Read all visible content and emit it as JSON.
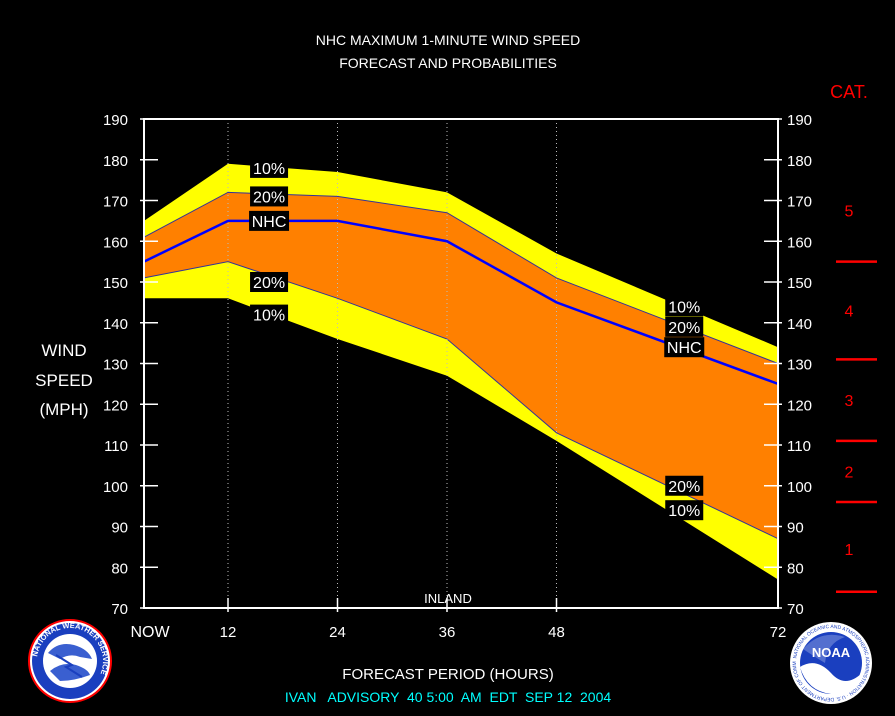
{
  "chart_data": {
    "type": "area",
    "title": "NHC MAXIMUM 1-MINUTE WIND SPEED",
    "subtitle": "FORECAST AND PROBABILITIES",
    "xlabel": "FORECAST PERIOD (HOURS)",
    "ylabel": [
      "WIND",
      "SPEED",
      "(MPH)"
    ],
    "footer": "IVAN   ADVISORY  40 5:00  AM  EDT  SEP 12  2004",
    "x_ticks": [
      "NOW",
      "12",
      "24",
      "36",
      "48",
      "72"
    ],
    "x_tick_values": [
      0,
      12,
      24,
      36,
      48,
      72
    ],
    "xlim": [
      0,
      72
    ],
    "ylim": [
      70,
      190
    ],
    "y_ticks": [
      70,
      80,
      90,
      100,
      110,
      120,
      130,
      140,
      150,
      160,
      170,
      180,
      190
    ],
    "grid_x_dotted": [
      12,
      24,
      36,
      48
    ],
    "annotation_inland": "INLAND",
    "x": [
      0,
      12,
      24,
      36,
      48,
      72
    ],
    "series": [
      {
        "name": "10%",
        "role": "upper_10",
        "values": [
          165,
          179,
          177,
          172,
          157,
          134
        ],
        "color": "#ffff00"
      },
      {
        "name": "20%",
        "role": "upper_20",
        "values": [
          161,
          172,
          171,
          167,
          151,
          130
        ],
        "color": "#ff8000"
      },
      {
        "name": "NHC",
        "role": "forecast",
        "values": [
          155,
          165,
          165,
          160,
          145,
          125
        ],
        "color": "#0000ff"
      },
      {
        "name": "20%",
        "role": "lower_20",
        "values": [
          151,
          155,
          146,
          136,
          113,
          87
        ],
        "color": "#ff8000"
      },
      {
        "name": "10%",
        "role": "lower_10",
        "values": [
          146,
          146,
          136,
          127,
          111,
          77
        ],
        "color": "#ffff00"
      }
    ],
    "band_labels": [
      {
        "text": "10%",
        "x": 16.5,
        "y": 178
      },
      {
        "text": "20%",
        "x": 16.5,
        "y": 171
      },
      {
        "text": "NHC",
        "x": 16.5,
        "y": 165
      },
      {
        "text": "20%",
        "x": 16.5,
        "y": 150
      },
      {
        "text": "10%",
        "x": 16.5,
        "y": 142
      },
      {
        "text": "10%",
        "x": 62,
        "y": 144
      },
      {
        "text": "20%",
        "x": 62,
        "y": 139
      },
      {
        "text": "NHC",
        "x": 62,
        "y": 134
      },
      {
        "text": "20%",
        "x": 62,
        "y": 100
      },
      {
        "text": "10%",
        "x": 62,
        "y": 94
      }
    ],
    "category_scale": {
      "title": "CAT.",
      "color": "#ff0000",
      "thresholds": [
        74,
        96,
        111,
        131,
        155
      ],
      "labels": [
        {
          "text": "1",
          "y": 84.5
        },
        {
          "text": "2",
          "y": 103.5
        },
        {
          "text": "3",
          "y": 121
        },
        {
          "text": "4",
          "y": 143
        },
        {
          "text": "5",
          "y": 167.5
        }
      ]
    }
  },
  "logos": {
    "left": "NATIONAL WEATHER SERVICE",
    "right_center": "NOAA",
    "right_ring": "NATIONAL OCEANIC AND ATMOSPHERIC ADMINISTRATION · U.S. DEPARTMENT OF COMMERCE"
  }
}
